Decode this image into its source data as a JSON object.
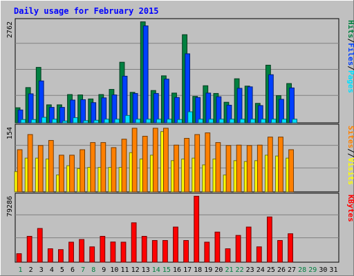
{
  "title": "Daily usage for February 2015",
  "colors": {
    "background": "#C0C0C0",
    "title": "#0000FF",
    "hits": "#008040",
    "files": "#0040FF",
    "pages": "#00E0FF",
    "visits": "#FFFF00",
    "sites": "#FF8000",
    "kbytes": "#FF0000",
    "weekday_label": "#000000",
    "weekend_label": "#008040"
  },
  "chart_data": {
    "type": "bar",
    "title": "Daily usage for February 2015",
    "days": [
      "1",
      "2",
      "3",
      "4",
      "5",
      "6",
      "7",
      "8",
      "9",
      "10",
      "11",
      "12",
      "13",
      "14",
      "15",
      "16",
      "17",
      "18",
      "19",
      "20",
      "21",
      "22",
      "23",
      "24",
      "25",
      "26",
      "27",
      "28",
      "29",
      "30",
      "31"
    ],
    "weekend_days": [
      "1",
      "7",
      "8",
      "14",
      "15",
      "21",
      "22",
      "28",
      "29"
    ],
    "panels": [
      {
        "name": "hits-files-pages",
        "ymax_label": "2762",
        "ymax": 2762,
        "right_labels": [
          {
            "text": "Hits",
            "color": "#008040"
          },
          {
            "text": "Files",
            "color": "#0040FF"
          },
          {
            "text": "Pages",
            "color": "#00E0FF"
          }
        ],
        "series": [
          {
            "name": "Hits",
            "color": "#008040",
            "values": [
              410,
              960,
              1510,
              490,
              490,
              770,
              760,
              650,
              770,
              910,
              1650,
              830,
              2750,
              880,
              1280,
              810,
              2400,
              720,
              1010,
              800,
              560,
              1200,
              1000,
              530,
              1570,
              740,
              1070,
              0,
              0,
              0,
              0
            ]
          },
          {
            "name": "Files",
            "color": "#0040FF",
            "values": [
              350,
              790,
              1140,
              420,
              420,
              620,
              630,
              550,
              680,
              760,
              1270,
              800,
              2640,
              800,
              1190,
              690,
              1880,
              690,
              810,
              710,
              480,
              940,
              980,
              470,
              1310,
              640,
              950,
              0,
              0,
              0,
              0
            ]
          },
          {
            "name": "Pages",
            "color": "#00E0FF",
            "values": [
              90,
              90,
              150,
              100,
              50,
              140,
              60,
              70,
              100,
              100,
              200,
              100,
              100,
              100,
              100,
              90,
              300,
              100,
              100,
              100,
              100,
              100,
              100,
              100,
              100,
              100,
              100,
              0,
              0,
              0,
              0
            ]
          }
        ]
      },
      {
        "name": "visits-sites",
        "ymax_label": "154",
        "ymax": 154,
        "right_labels": [
          {
            "text": "Sites",
            "color": "#FF8000"
          },
          {
            "text": "/",
            "color": "#000000"
          },
          {
            "text": "Visits",
            "color": "#FFFF00"
          }
        ],
        "series": [
          {
            "name": "Visits",
            "color": "#FFFF00",
            "values": [
              48,
              80,
              80,
              78,
              40,
              62,
              55,
              58,
              58,
              58,
              58,
              93,
              78,
              87,
              143,
              74,
              78,
              80,
              64,
              78,
              40,
              74,
              72,
              74,
              87,
              85,
              80,
              0,
              0,
              0,
              0
            ]
          },
          {
            "name": "Sites",
            "color": "#FF8000",
            "values": [
              100,
              136,
              110,
              122,
              87,
              87,
              100,
              117,
              117,
              105,
              125,
              151,
              132,
              151,
              151,
              111,
              127,
              136,
              140,
              117,
              110,
              111,
              110,
              111,
              130,
              130,
              100,
              0,
              0,
              0,
              0
            ]
          }
        ]
      },
      {
        "name": "kbytes",
        "ymax_label": "79286",
        "ymax": 79286,
        "right_labels": [
          {
            "text": "KBytes",
            "color": "#FF0000"
          }
        ],
        "series": [
          {
            "name": "KBytes",
            "color": "#FF0000",
            "values": [
              10200,
              31000,
              40400,
              16100,
              15100,
              24000,
              27200,
              18400,
              31000,
              24200,
              24000,
              47200,
              31000,
              26000,
              26000,
              42100,
              26000,
              79000,
              24000,
              36100,
              16100,
              32100,
              42100,
              18400,
              54200,
              26000,
              34100,
              0,
              0,
              0,
              0
            ]
          }
        ]
      }
    ]
  }
}
